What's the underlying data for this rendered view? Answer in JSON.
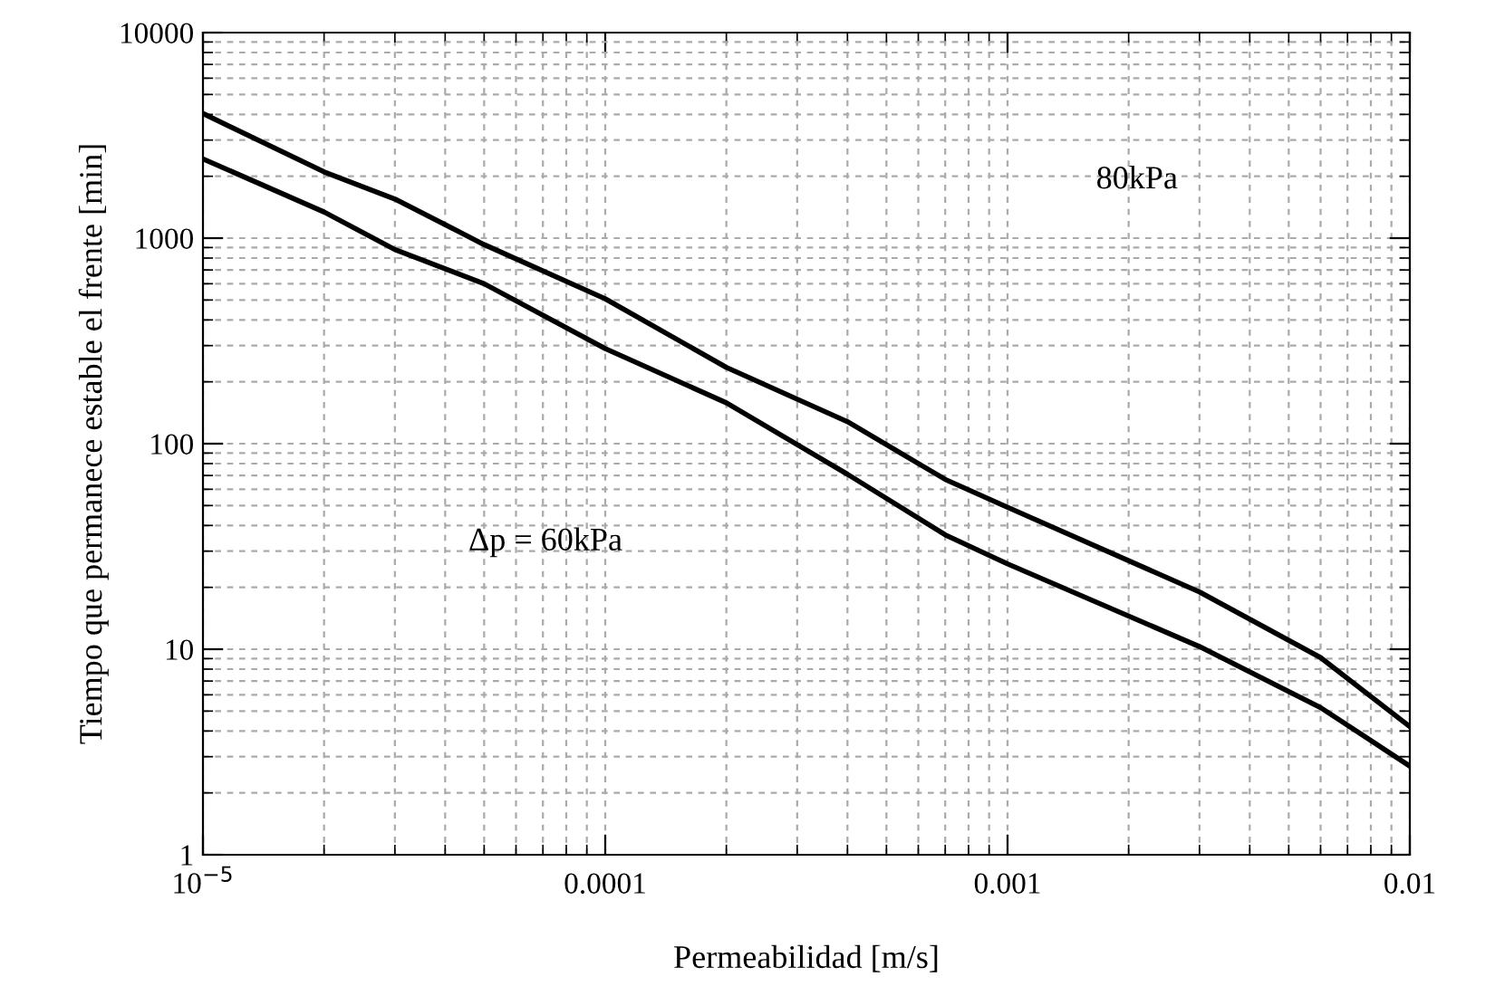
{
  "chart_data": {
    "type": "line",
    "xlabel": "Permeabilidad [m/s]",
    "ylabel": "Tiempo que permanece estable el frente [min]",
    "log": "xy",
    "grid": true,
    "legend": false,
    "marker": "none",
    "line_style": "solid",
    "x": [
      1e-05,
      2e-05,
      3e-05,
      5e-05,
      0.0001,
      0.0002,
      0.0004,
      0.0007,
      0.001,
      0.003,
      0.006,
      0.01
    ],
    "series": [
      {
        "color": "#000000",
        "values": [
          4040,
          2100,
          1550,
          930,
          507,
          235,
          128,
          67,
          49,
          19,
          9.1,
          4.2
        ]
      },
      {
        "color": "#000000",
        "values": [
          2430,
          1340,
          880,
          600,
          290,
          158,
          71,
          36,
          26,
          10.3,
          5.2,
          2.7
        ]
      }
    ],
    "xlim": [
      1e-05,
      0.01
    ],
    "ylim": [
      1,
      10000
    ],
    "xticks": [
      {
        "value": 1e-05,
        "label": "10$^{−5}$"
      },
      0.0001,
      0.001,
      0.01
    ],
    "yticks": [
      1,
      10,
      100,
      1000,
      10000
    ],
    "annotations": [
      "80kPa",
      "Δp = 60kPa"
    ]
  }
}
